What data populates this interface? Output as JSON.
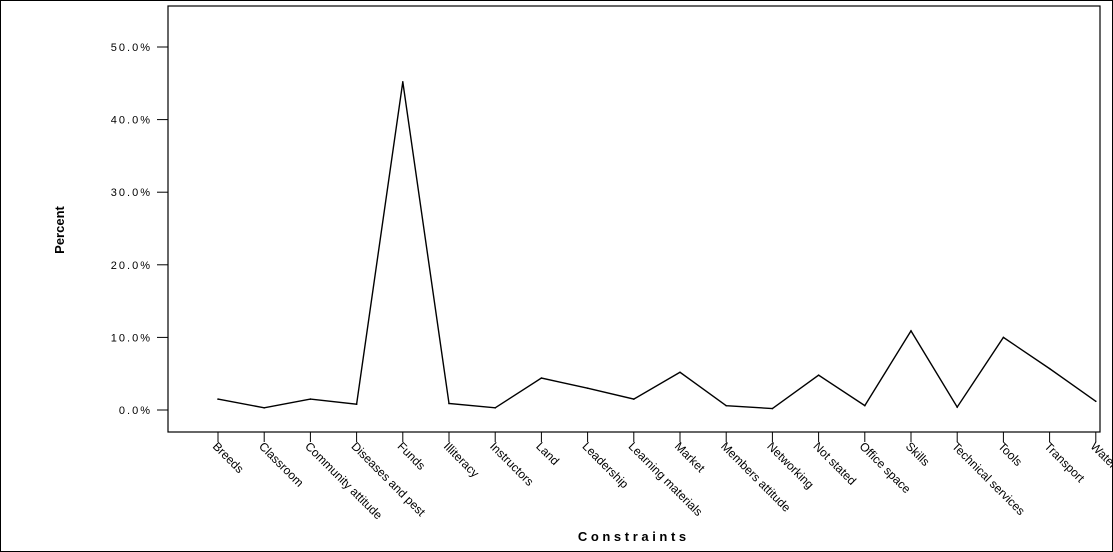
{
  "chart_data": {
    "type": "line",
    "title": "",
    "xlabel": "C o n s t r a i n t s",
    "ylabel": "Percent",
    "categories": [
      "Breeds",
      "Classroom",
      "Community attitude",
      "Diseases and pest",
      "Funds",
      "Illiteracy",
      "Instructors",
      "Land",
      "Leadership",
      "Learning materials",
      "Market",
      "Members attitude",
      "Networking",
      "Not stated",
      "Office space",
      "Skills",
      "Technical services",
      "Tools",
      "Transport",
      "Water"
    ],
    "values": [
      1.5,
      0.3,
      1.5,
      0.8,
      45.2,
      0.9,
      0.3,
      4.4,
      3.0,
      1.5,
      5.2,
      0.6,
      0.2,
      4.8,
      0.6,
      10.9,
      0.4,
      10.0,
      5.7,
      1.2
    ],
    "ylim": [
      0,
      50
    ],
    "yticks": [
      "0.0%",
      "10.0%",
      "20.0%",
      "30.0%",
      "40.0%",
      "50.0%"
    ],
    "grid": false,
    "legend": "none"
  }
}
